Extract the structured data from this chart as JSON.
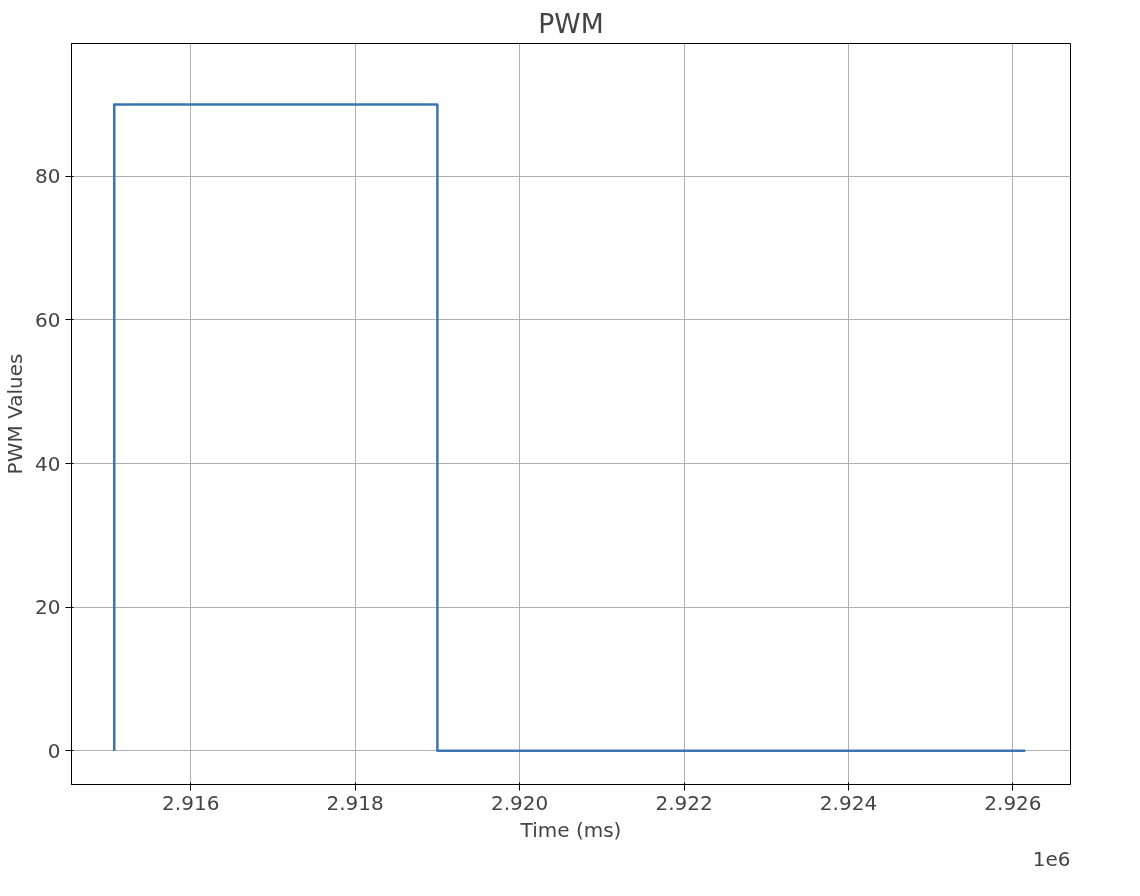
{
  "chart_data": {
    "type": "line",
    "title": "PWM",
    "xlabel": "Time (ms)",
    "ylabel": "PWM Values",
    "annotations": [
      "1e6"
    ],
    "series": [
      {
        "color": "#3b75af",
        "x": [
          2.91507,
          2.91507,
          2.919,
          2.919,
          2.92615
        ],
        "values": [
          0,
          90,
          90,
          0,
          0
        ]
      }
    ],
    "xlim": [
      2.91455,
      2.9267
    ],
    "ylim": [
      -4.7,
      98.5
    ],
    "xticks": [
      2.916,
      2.918,
      {
        "value": 2.92,
        "label": "2.920"
      },
      2.922,
      2.924,
      2.926
    ],
    "yticks": [
      0,
      20,
      40,
      60,
      80
    ],
    "grid": true,
    "marker": "none",
    "line_style": "solid"
  }
}
